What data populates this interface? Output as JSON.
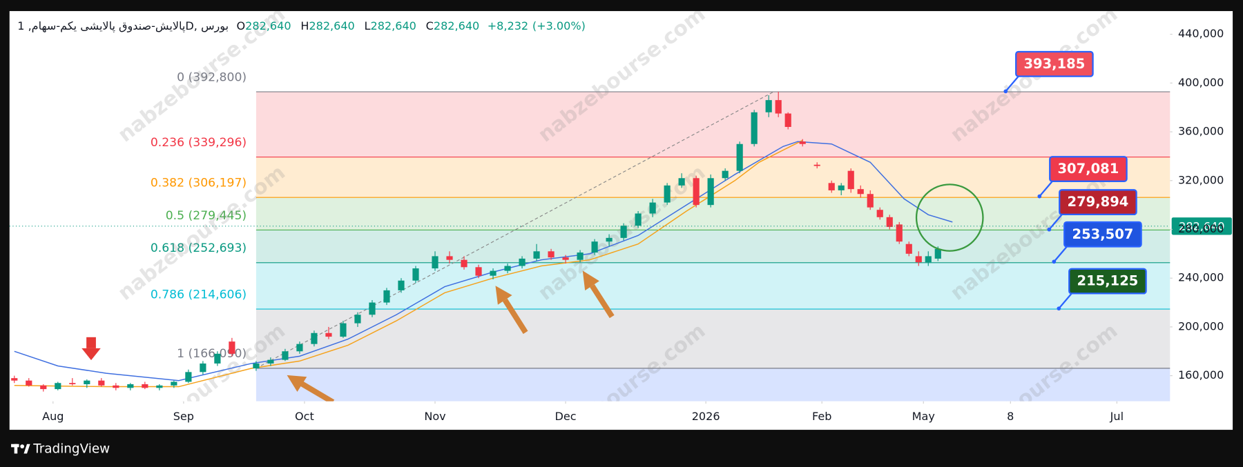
{
  "chart_data": {
    "type": "candlestick",
    "header": {
      "symbol": "پالایش-صندوق پالایشی یکم-سهام, 1D, بورس",
      "ohlc": [
        {
          "key": "O",
          "value": 282640,
          "label": "282,640"
        },
        {
          "key": "H",
          "value": 282640,
          "label": "282,640"
        },
        {
          "key": "L",
          "value": 282640,
          "label": "282,640"
        },
        {
          "key": "C",
          "value": 282640,
          "label": "282,640"
        }
      ],
      "change": {
        "value": 8232,
        "label": "+8,232"
      },
      "change_pct": {
        "value": 3,
        "label": "(+3.00%)"
      }
    },
    "xlim": [
      0,
      240
    ],
    "ylim": [
      139000,
      459000
    ],
    "grid": false,
    "xticks": [
      {
        "value": 9,
        "label": "Aug"
      },
      {
        "value": 36,
        "label": "Sep"
      },
      {
        "value": 61,
        "label": "Oct"
      },
      {
        "value": 88,
        "label": "Nov"
      },
      {
        "value": 115,
        "label": "Dec"
      },
      {
        "value": 144,
        "label": "2026"
      },
      {
        "value": 168,
        "label": "Feb"
      },
      {
        "value": 189,
        "label": "May"
      },
      {
        "value": 207,
        "label": "8"
      },
      {
        "value": 229,
        "label": "Jul"
      }
    ],
    "yticks": [
      {
        "value": 160000,
        "label": "160,000"
      },
      {
        "value": 200000,
        "label": "200,000"
      },
      {
        "value": 240000,
        "label": "240,000"
      },
      {
        "value": 280000,
        "label": "280,000"
      },
      {
        "value": 320000,
        "label": "320,000"
      },
      {
        "value": 360000,
        "label": "360,000"
      },
      {
        "value": 400000,
        "label": "400,000"
      },
      {
        "value": 440000,
        "label": "440,000"
      }
    ],
    "up_color": "#089981",
    "down_color": "#f23645",
    "candles": {
      "x": [
        1,
        4,
        7,
        10,
        13,
        16,
        19,
        22,
        25,
        28,
        31,
        34,
        37,
        40,
        43,
        46,
        51,
        54,
        57,
        60,
        63,
        66,
        69,
        72,
        75,
        78,
        81,
        84,
        88,
        91,
        94,
        97,
        100,
        103,
        106,
        109,
        112,
        115,
        118,
        121,
        124,
        127,
        130,
        133,
        136,
        139,
        142,
        145,
        148,
        151,
        154,
        157,
        159,
        161,
        164,
        167,
        170,
        172,
        174,
        176,
        178,
        180,
        182,
        184,
        186,
        188,
        190,
        192
      ],
      "open": [
        158000,
        156000,
        152000,
        149000,
        154000,
        153000,
        156000,
        152000,
        150000,
        153000,
        150000,
        152000,
        155000,
        163000,
        170000,
        188000,
        166000,
        170000,
        173000,
        180000,
        186000,
        195000,
        192000,
        203000,
        210000,
        220000,
        230000,
        238000,
        248000,
        258000,
        255000,
        249000,
        242000,
        246000,
        250000,
        256000,
        262000,
        257000,
        255000,
        261000,
        270000,
        273000,
        283000,
        293000,
        302000,
        316000,
        322000,
        300000,
        322000,
        328000,
        350000,
        376000,
        386000,
        375000,
        352000,
        333000,
        318000,
        312000,
        328000,
        313000,
        309000,
        296000,
        290000,
        284000,
        268000,
        258000,
        253000,
        256000
      ],
      "high": [
        160000,
        158000,
        153000,
        155000,
        158000,
        157000,
        158000,
        154000,
        154000,
        155000,
        153000,
        156000,
        165000,
        172000,
        180000,
        191000,
        172000,
        175000,
        182000,
        188000,
        197000,
        200000,
        205000,
        212000,
        222000,
        232000,
        240000,
        250000,
        262000,
        262000,
        258000,
        251000,
        248000,
        252000,
        258000,
        268000,
        264000,
        259000,
        263000,
        272000,
        276000,
        285000,
        295000,
        305000,
        318000,
        326000,
        324000,
        325000,
        330000,
        352000,
        378000,
        390000,
        392800,
        376000,
        354000,
        335000,
        320000,
        318000,
        330000,
        316000,
        312000,
        298000,
        292000,
        286000,
        270000,
        262000,
        262000,
        266000
      ],
      "low": [
        154000,
        151000,
        147000,
        148000,
        152000,
        150000,
        151000,
        148000,
        148000,
        149000,
        148000,
        150000,
        154000,
        161000,
        168000,
        176000,
        164000,
        168000,
        172000,
        178000,
        184000,
        190000,
        191000,
        200000,
        208000,
        218000,
        228000,
        236000,
        246000,
        252000,
        247000,
        240000,
        239000,
        244000,
        248000,
        254000,
        255000,
        252000,
        253000,
        259000,
        266000,
        271000,
        281000,
        290000,
        300000,
        314000,
        298000,
        298000,
        320000,
        326000,
        348000,
        372000,
        372000,
        362000,
        348000,
        330000,
        310000,
        308000,
        310000,
        306000,
        296000,
        288000,
        280000,
        268000,
        258000,
        250000,
        250000,
        254000
      ],
      "close": [
        156000,
        152000,
        149000,
        154000,
        153000,
        156000,
        152000,
        150000,
        153000,
        150000,
        152000,
        155000,
        163000,
        170000,
        178000,
        178000,
        170000,
        173000,
        180000,
        186000,
        195000,
        192000,
        203000,
        210000,
        220000,
        230000,
        238000,
        248000,
        258000,
        255000,
        249000,
        242000,
        246000,
        250000,
        256000,
        262000,
        257000,
        255000,
        261000,
        270000,
        273000,
        283000,
        293000,
        302000,
        316000,
        322000,
        300000,
        322000,
        328000,
        350000,
        376000,
        386000,
        375000,
        364000,
        350000,
        332000,
        312000,
        316000,
        313000,
        309000,
        298000,
        290000,
        282000,
        270000,
        260000,
        253000,
        258000,
        264000
      ]
    },
    "lines": [
      {
        "color": "#f5a21b",
        "x": [
          1,
          20,
          35,
          50,
          60,
          70,
          80,
          90,
          100,
          110,
          120,
          130,
          140,
          150,
          155,
          160,
          164
        ],
        "values": [
          152000,
          151000,
          151000,
          166000,
          172000,
          185000,
          205000,
          228000,
          240000,
          250000,
          255000,
          268000,
          295000,
          320000,
          335000,
          345000,
          353000
        ]
      },
      {
        "color": "#3f6fe0",
        "x": [
          1,
          10,
          20,
          35,
          50,
          60,
          70,
          80,
          90,
          100,
          110,
          120,
          130,
          140,
          150,
          160,
          163,
          170,
          178,
          185,
          190,
          195
        ],
        "values": [
          180000,
          168000,
          162000,
          156000,
          170000,
          176000,
          190000,
          210000,
          233000,
          245000,
          255000,
          260000,
          275000,
          300000,
          325000,
          348000,
          352000,
          350000,
          335000,
          305000,
          292000,
          286000
        ]
      }
    ],
    "fib": {
      "x_start": 51,
      "levels": [
        {
          "value": 392800,
          "label": "0 (392,800)",
          "color": "#787b86"
        },
        {
          "value": 339296,
          "label": "0.236 (339,296)",
          "color": "#f23645"
        },
        {
          "value": 306197,
          "label": "0.382 (306,197)",
          "color": "#ff9800"
        },
        {
          "value": 279445,
          "label": "0.5 (279,445)",
          "color": "#4caf50"
        },
        {
          "value": 252693,
          "label": "0.618 (252,693)",
          "color": "#089981"
        },
        {
          "value": 214606,
          "label": "0.786 (214,606)",
          "color": "#00bcd4"
        },
        {
          "value": 166090,
          "label": "1 (166,090)",
          "color": "#787b86"
        }
      ],
      "extension_color": "#2962ff"
    },
    "trend_line": {
      "x": [
        51,
        158
      ],
      "values": [
        166090,
        392800
      ]
    },
    "current_price": {
      "value": 282640,
      "label": "282,640",
      "color": "#089981"
    },
    "annotations": [
      {
        "x": 206,
        "value": 393185,
        "label": "393,185",
        "color": "#f0505c"
      },
      {
        "x": 213,
        "value": 307081,
        "label": "307,081",
        "color": "#ef3a4c"
      },
      {
        "x": 215,
        "value": 279894,
        "label": "279,894",
        "color": "#b8232f"
      },
      {
        "x": 216,
        "value": 253507,
        "label": "253,507",
        "color": "#1f55e0"
      },
      {
        "x": 217,
        "value": 215125,
        "label": "215,125",
        "color": "#1b5e20"
      }
    ],
    "watermark": "nabzebourse.com",
    "branding": "TradingView"
  }
}
